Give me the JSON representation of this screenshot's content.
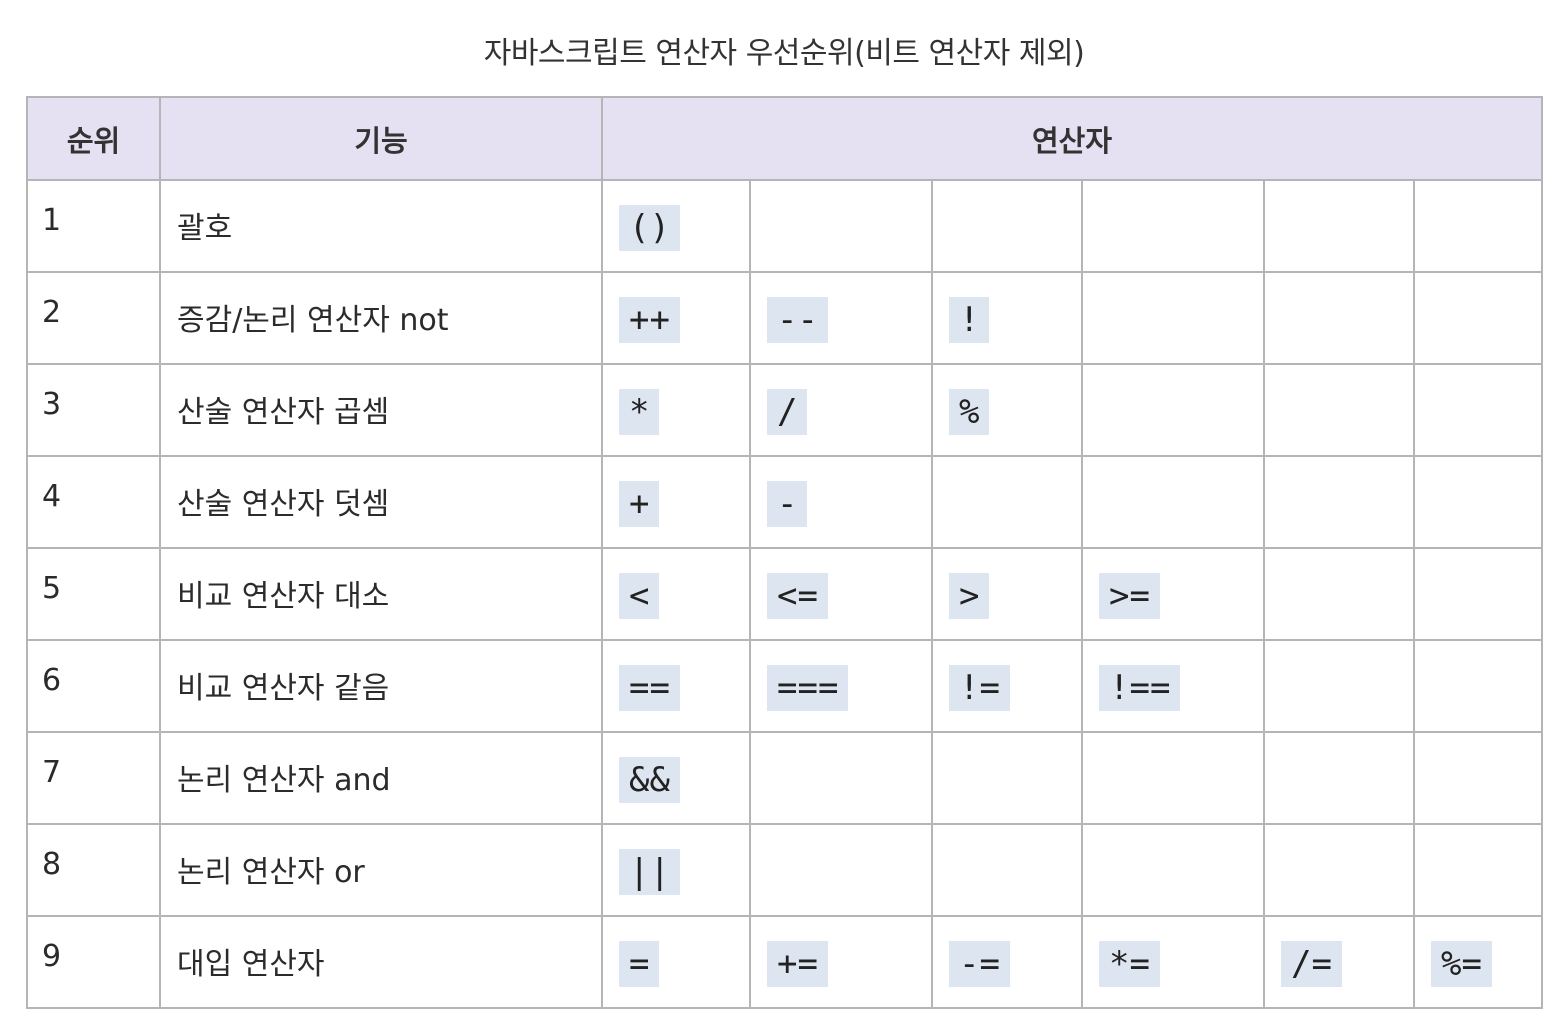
{
  "caption": "자바스크립트 연산자 우선순위(비트 연산자 제외)",
  "headers": {
    "rank": "순위",
    "function": "기능",
    "operators": "연산자"
  },
  "rows": [
    {
      "rank": "1",
      "function": "괄호",
      "operators": [
        "()",
        "",
        "",
        "",
        "",
        ""
      ]
    },
    {
      "rank": "2",
      "function": "증감/논리 연산자 not",
      "operators": [
        "++",
        "--",
        "!",
        "",
        "",
        ""
      ]
    },
    {
      "rank": "3",
      "function": "산술 연산자 곱셈",
      "operators": [
        "*",
        "/",
        "%",
        "",
        "",
        ""
      ]
    },
    {
      "rank": "4",
      "function": "산술 연산자 덧셈",
      "operators": [
        "+",
        "-",
        "",
        "",
        "",
        ""
      ]
    },
    {
      "rank": "5",
      "function": "비교 연산자 대소",
      "operators": [
        "<",
        "<=",
        ">",
        ">=",
        "",
        ""
      ]
    },
    {
      "rank": "6",
      "function": "비교 연산자 같음",
      "operators": [
        "==",
        "===",
        "!=",
        "!==",
        "",
        ""
      ]
    },
    {
      "rank": "7",
      "function": "논리 연산자 and",
      "operators": [
        "&&",
        "",
        "",
        "",
        "",
        ""
      ]
    },
    {
      "rank": "8",
      "function": "논리 연산자 or",
      "operators": [
        "||",
        "",
        "",
        "",
        "",
        ""
      ]
    },
    {
      "rank": "9",
      "function": "대입 연산자",
      "operators": [
        "=",
        "+=",
        "-=",
        "*=",
        "/=",
        "%="
      ]
    }
  ],
  "colors": {
    "header_bg": "#e6e0f3",
    "code_bg": "#dde5f0",
    "border": "#b5b5b5"
  }
}
